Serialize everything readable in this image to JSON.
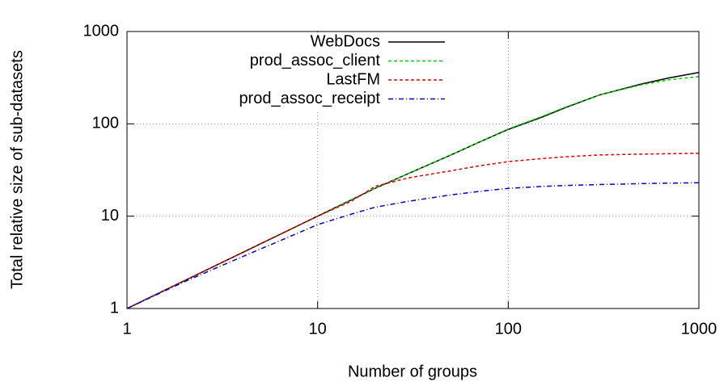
{
  "chart_data": {
    "type": "line",
    "xlabel": "Number of groups",
    "ylabel": "Total relative size of sub-datasets",
    "x": [
      1,
      2,
      3,
      5,
      7,
      10,
      15,
      20,
      30,
      50,
      70,
      100,
      150,
      200,
      300,
      500,
      700,
      1000
    ],
    "series": [
      {
        "name": "WebDocs",
        "color": "#000000",
        "values": [
          1,
          2,
          3,
          5,
          7,
          10,
          15,
          20,
          29,
          46,
          63,
          87,
          118,
          150,
          205,
          270,
          315,
          360
        ]
      },
      {
        "name": "prod_assoc_client",
        "color": "#00cc00",
        "values": [
          1,
          2,
          3,
          5,
          7,
          10,
          15,
          20,
          29,
          46,
          63,
          88,
          120,
          152,
          205,
          265,
          300,
          325
        ]
      },
      {
        "name": "LastFM",
        "color": "#dd0000",
        "values": [
          1,
          2,
          3,
          5,
          7,
          10,
          14.5,
          21,
          26,
          31,
          35,
          39,
          42,
          44,
          46,
          47,
          47.5,
          48
        ]
      },
      {
        "name": "prod_assoc_receipt",
        "color": "#0000cc",
        "values": [
          1,
          1.95,
          2.8,
          4.4,
          5.9,
          8.1,
          10.5,
          12.5,
          14.5,
          17,
          18.5,
          20,
          21,
          21.5,
          22,
          22.5,
          22.8,
          23
        ]
      }
    ],
    "xlim": [
      1,
      1000
    ],
    "ylim": [
      1,
      1000
    ],
    "xticks": [
      1,
      10,
      100,
      1000
    ],
    "yticks": [
      1,
      10,
      100,
      1000
    ],
    "xlog": true,
    "ylog": true,
    "grid": true,
    "legend": "top-left"
  }
}
